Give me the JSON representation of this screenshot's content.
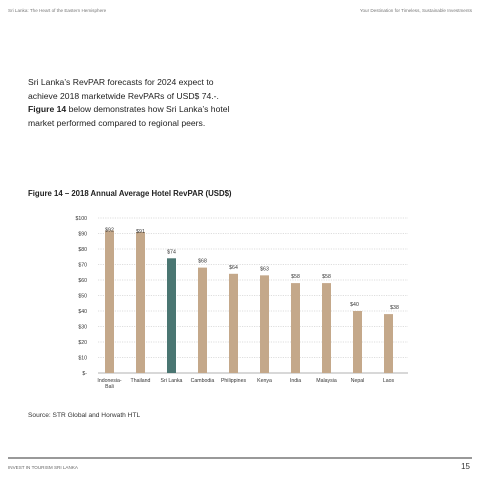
{
  "header": {
    "left": "Sri Lanka: The Heart of the Eastern Hemisphere",
    "right": "Your Destination for Timeless, Sustainable Investments"
  },
  "intro": {
    "part1": "Sri Lanka’s RevPAR forecasts for 2024 expect to achieve 2018 marketwide RevPARs of USD$ 74.-.",
    "bold": "Figure 14",
    "part2": "below demonstrates how Sri Lanka’s hotel market performed compared to regional peers."
  },
  "figure_title": "Figure 14 – 2018 Annual Average Hotel RevPAR (USD$)",
  "source": "Source: STR Global and Horwath HTL",
  "footer": {
    "left": "INVEST IN TOURISM SRI LANKA",
    "page_number": "15"
  },
  "chart_data": {
    "type": "bar",
    "categories": [
      "Indonesia-\nBali",
      "Thailand",
      "Sri Lanka",
      "Cambodia",
      "Philippines",
      "Kenya",
      "India",
      "Malaysia",
      "Nepal",
      "Laos"
    ],
    "values": [
      92,
      91,
      74,
      68,
      64,
      63,
      58,
      58,
      40,
      38
    ],
    "data_labels": [
      "$92",
      "$91",
      "$74",
      "$68",
      "$64",
      "$63",
      "$58",
      "$58",
      "$40",
      "$38"
    ],
    "y_tick_labels": [
      "$-",
      "$10",
      "$20",
      "$30",
      "$40",
      "$50",
      "$60",
      "$70",
      "$80",
      "$90",
      "$100"
    ],
    "ylim": [
      0,
      100
    ],
    "y_tick_step": 10,
    "grid": true,
    "colors": {
      "default": "#c4a88a",
      "highlight": "#4a7672",
      "grid": "#bdbdbd",
      "axis": "#999999"
    },
    "highlight_category": "Sri Lanka"
  }
}
